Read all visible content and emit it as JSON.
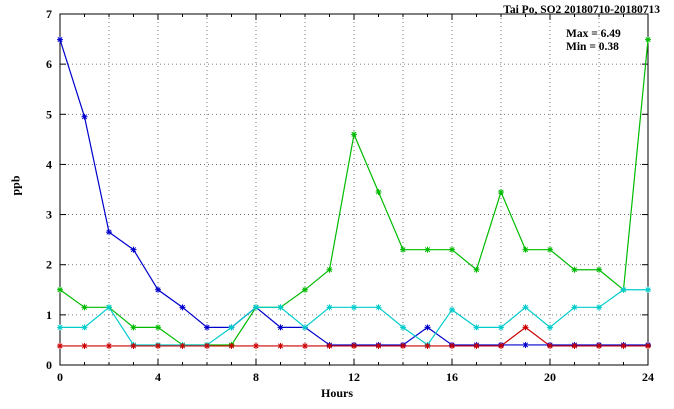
{
  "title": "Tai Po, SO2 20180710-20180713",
  "annotation": {
    "max_label": "Max = 6.49",
    "min_label": "Min = 0.38"
  },
  "chart_data": {
    "type": "line",
    "title": "Tai Po, SO2 20180710-20180713",
    "xlabel": "Hours",
    "ylabel": "ppb",
    "xlim": [
      0,
      24
    ],
    "ylim": [
      0,
      7
    ],
    "x_ticks": [
      0,
      4,
      8,
      12,
      16,
      20,
      24
    ],
    "x_minor_step": 1,
    "y_ticks": [
      0,
      1,
      2,
      3,
      4,
      5,
      6,
      7
    ],
    "grid": true,
    "grid_x_step": 2,
    "grid_y_step": 1,
    "legend": "none",
    "max_value": 6.49,
    "min_value": 0.38,
    "x": [
      0,
      1,
      2,
      3,
      4,
      5,
      6,
      7,
      8,
      9,
      10,
      11,
      12,
      13,
      14,
      15,
      16,
      17,
      18,
      19,
      20,
      21,
      22,
      23,
      24
    ],
    "series": [
      {
        "name": "series-blue",
        "color": "#0000cd",
        "values": [
          6.49,
          4.95,
          2.65,
          2.3,
          1.5,
          1.15,
          0.75,
          0.75,
          1.15,
          0.75,
          0.75,
          0.4,
          0.4,
          0.4,
          0.4,
          0.75,
          0.4,
          0.4,
          0.4,
          0.4,
          0.4,
          0.4,
          0.4,
          0.4,
          0.4
        ]
      },
      {
        "name": "series-green",
        "color": "#00bb00",
        "values": [
          1.5,
          1.15,
          1.15,
          0.75,
          0.75,
          0.4,
          0.4,
          0.4,
          1.15,
          1.15,
          1.5,
          1.9,
          4.6,
          3.45,
          2.3,
          2.3,
          2.3,
          1.9,
          3.45,
          2.3,
          2.3,
          1.9,
          1.9,
          1.5,
          6.49
        ]
      },
      {
        "name": "series-cyan",
        "color": "#00cccc",
        "values": [
          0.75,
          0.75,
          1.15,
          0.4,
          0.4,
          0.4,
          0.4,
          0.75,
          1.15,
          1.15,
          0.75,
          1.15,
          1.15,
          1.15,
          0.75,
          0.4,
          1.1,
          0.75,
          0.75,
          1.15,
          0.75,
          1.15,
          1.15,
          1.5,
          1.5
        ]
      },
      {
        "name": "series-red",
        "color": "#cc0000",
        "values": [
          0.38,
          0.38,
          0.38,
          0.38,
          0.38,
          0.38,
          0.38,
          0.38,
          0.38,
          0.38,
          0.38,
          0.38,
          0.38,
          0.38,
          0.38,
          0.38,
          0.38,
          0.38,
          0.38,
          0.75,
          0.38,
          0.38,
          0.38,
          0.38,
          0.38
        ]
      }
    ]
  }
}
